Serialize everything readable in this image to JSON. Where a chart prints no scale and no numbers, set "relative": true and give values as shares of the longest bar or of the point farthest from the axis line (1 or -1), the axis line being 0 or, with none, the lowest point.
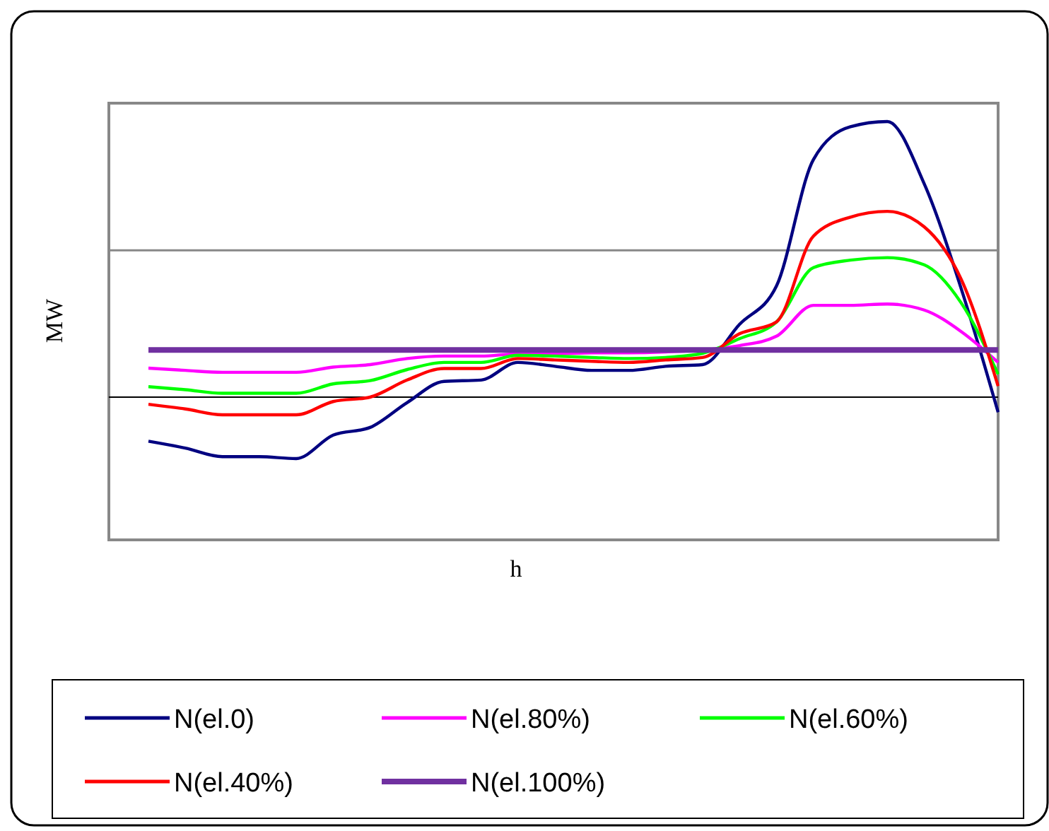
{
  "chart_data": {
    "type": "line",
    "relative": true,
    "xlabel": "h",
    "ylabel": "MW",
    "ref_lines": [
      {
        "axis": "y",
        "value": 0.533,
        "color": "#888888"
      }
    ],
    "legend": "bottom",
    "marker": "none",
    "line_style": "solid",
    "categories": [
      null,
      null,
      null,
      null,
      null,
      null,
      null,
      null,
      null,
      null,
      null,
      null,
      null,
      null,
      null,
      null,
      null,
      null,
      null,
      null,
      null,
      null,
      null,
      null
    ],
    "series": [
      {
        "name": "N(el.0)",
        "color": "#000080",
        "values": [
          -0.16,
          -0.185,
          -0.216,
          -0.216,
          -0.223,
          -0.138,
          -0.11,
          -0.02,
          0.057,
          0.062,
          0.126,
          0.112,
          0.097,
          0.097,
          0.112,
          0.118,
          0.264,
          0.403,
          0.862,
          0.981,
          1.0,
          0.774,
          0.394,
          -0.055
        ]
      },
      {
        "name": "N(el.80%)",
        "color": "#ff00ff",
        "values": [
          0.105,
          0.097,
          0.09,
          0.09,
          0.09,
          0.109,
          0.118,
          0.14,
          0.149,
          0.149,
          0.157,
          0.157,
          0.161,
          0.161,
          0.164,
          0.171,
          0.187,
          0.221,
          0.333,
          0.333,
          0.338,
          0.316,
          0.238,
          0.126
        ]
      },
      {
        "name": "N(el.60%)",
        "color": "#00ff00",
        "values": [
          0.038,
          0.027,
          0.014,
          0.014,
          0.014,
          0.048,
          0.06,
          0.1,
          0.126,
          0.126,
          0.152,
          0.149,
          0.144,
          0.14,
          0.144,
          0.159,
          0.212,
          0.273,
          0.47,
          0.497,
          0.506,
          0.48,
          0.342,
          0.083
        ]
      },
      {
        "name": "N(el.40%)",
        "color": "#ff0000",
        "values": [
          -0.026,
          -0.043,
          -0.064,
          -0.064,
          -0.064,
          -0.016,
          0,
          0.062,
          0.104,
          0.104,
          0.14,
          0.135,
          0.13,
          0.126,
          0.135,
          0.144,
          0.23,
          0.273,
          0.584,
          0.653,
          0.674,
          0.618,
          0.428,
          0.04
        ]
      },
      {
        "name": "N(el.100%)",
        "color": "#7030a0",
        "values": [
          0.171,
          0.171,
          0.171,
          0.171,
          0.171,
          0.171,
          0.171,
          0.171,
          0.171,
          0.171,
          0.171,
          0.171,
          0.171,
          0.171,
          0.171,
          0.171,
          0.171,
          0.171,
          0.171,
          0.171,
          0.171,
          0.171,
          0.171,
          0.171
        ]
      }
    ]
  }
}
